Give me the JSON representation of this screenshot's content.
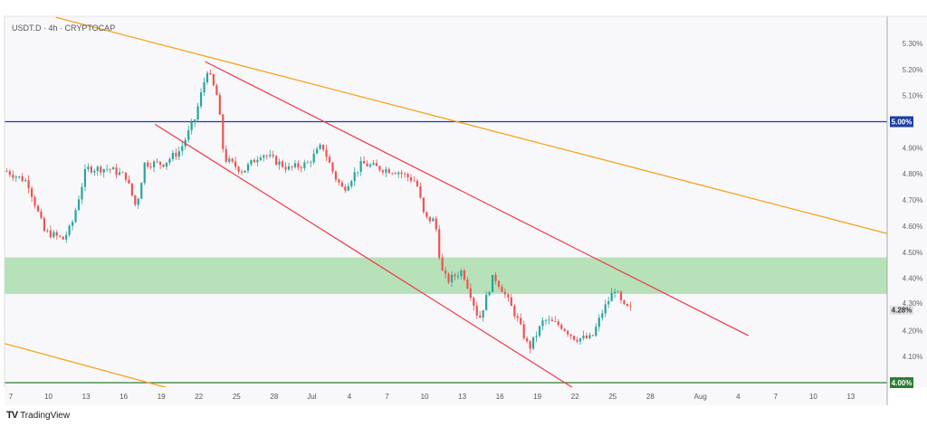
{
  "header": {
    "symbol_title": "USDT.D · 4h · CRYPTOCAP"
  },
  "footer": {
    "brand": "TradingView",
    "logo_mark": "TV"
  },
  "colors": {
    "up": "#26a69a",
    "down": "#ef5350",
    "trend_orange": "#f7a21b",
    "channel_red": "#f23645",
    "level_blue": "#1e3fa0",
    "level_green": "#2e7d32",
    "zone": "#b2dfb5"
  },
  "chart_data": {
    "type": "candlestick",
    "symbol": "USDT.D",
    "interval": "4h",
    "yaxis": {
      "unit": "%",
      "ticks": [
        "5.30%",
        "5.20%",
        "5.10%",
        "5.00%",
        "4.90%",
        "4.80%",
        "4.70%",
        "4.60%",
        "4.50%",
        "4.40%",
        "4.30%",
        "4.20%",
        "4.10%",
        "4.00%"
      ],
      "ylim": [
        3.99,
        5.4
      ]
    },
    "xaxis": {
      "ticks": [
        {
          "label": "7",
          "date": "Jun 7"
        },
        {
          "label": "10",
          "date": "Jun 10"
        },
        {
          "label": "13",
          "date": "Jun 13"
        },
        {
          "label": "16",
          "date": "Jun 16"
        },
        {
          "label": "19",
          "date": "Jun 19"
        },
        {
          "label": "22",
          "date": "Jun 22"
        },
        {
          "label": "25",
          "date": "Jun 25"
        },
        {
          "label": "28",
          "date": "Jun 28"
        },
        {
          "label": "Jul",
          "date": "Jul 1"
        },
        {
          "label": "4",
          "date": "Jul 4"
        },
        {
          "label": "7",
          "date": "Jul 7"
        },
        {
          "label": "10",
          "date": "Jul 10"
        },
        {
          "label": "13",
          "date": "Jul 13"
        },
        {
          "label": "16",
          "date": "Jul 16"
        },
        {
          "label": "19",
          "date": "Jul 19"
        },
        {
          "label": "22",
          "date": "Jul 22"
        },
        {
          "label": "25",
          "date": "Jul 25"
        },
        {
          "label": "28",
          "date": "Jul 28"
        },
        {
          "label": "Aug",
          "date": "Aug 1"
        },
        {
          "label": "4",
          "date": "Aug 4"
        },
        {
          "label": "7",
          "date": "Aug 7"
        },
        {
          "label": "10",
          "date": "Aug 10"
        },
        {
          "label": "13",
          "date": "Aug 13"
        }
      ]
    },
    "price_path": [
      [
        "Jun 6 16:00",
        4.81
      ],
      [
        "Jun 8 08:00",
        4.77
      ],
      [
        "Jun 9 16:00",
        4.58
      ],
      [
        "Jun 11 04:00",
        4.55
      ],
      [
        "Jun 11 20:00",
        4.6
      ],
      [
        "Jun 13 00:00",
        4.82
      ],
      [
        "Jun 14 20:00",
        4.82
      ],
      [
        "Jun 16 04:00",
        4.79
      ],
      [
        "Jun 17 00:00",
        4.67
      ],
      [
        "Jun 17 16:00",
        4.84
      ],
      [
        "Jun 19 04:00",
        4.84
      ],
      [
        "Jun 20 12:00",
        4.89
      ],
      [
        "Jun 21 16:00",
        5.01
      ],
      [
        "Jun 22 16:00",
        5.2
      ],
      [
        "Jun 23 12:00",
        5.09
      ],
      [
        "Jun 24 00:00",
        4.86
      ],
      [
        "Jun 25 12:00",
        4.81
      ],
      [
        "Jun 27 00:00",
        4.88
      ],
      [
        "Jun 29 04:00",
        4.82
      ],
      [
        "Jun 30 16:00",
        4.84
      ],
      [
        "Jul 1 20:00",
        4.91
      ],
      [
        "Jul 2 20:00",
        4.79
      ],
      [
        "Jul 3 12:00",
        4.74
      ],
      [
        "Jul 5 00:00",
        4.84
      ],
      [
        "Jul 6 12:00",
        4.82
      ],
      [
        "Jul 7 20:00",
        4.81
      ],
      [
        "Jul 9 08:00",
        4.77
      ],
      [
        "Jul 10 00:00",
        4.63
      ],
      [
        "Jul 10 20:00",
        4.62
      ],
      [
        "Jul 11 08:00",
        4.43
      ],
      [
        "Jul 11 20:00",
        4.39
      ],
      [
        "Jul 13 00:00",
        4.43
      ],
      [
        "Jul 13 16:00",
        4.34
      ],
      [
        "Jul 14 08:00",
        4.24
      ],
      [
        "Jul 15 12:00",
        4.41
      ],
      [
        "Jul 16 04:00",
        4.36
      ],
      [
        "Jul 17 08:00",
        4.25
      ],
      [
        "Jul 18 08:00",
        4.13
      ],
      [
        "Jul 19 12:00",
        4.24
      ],
      [
        "Jul 20 20:00",
        4.22
      ],
      [
        "Jul 22 00:00",
        4.17
      ],
      [
        "Jul 23 08:00",
        4.17
      ],
      [
        "Jul 24 04:00",
        4.27
      ],
      [
        "Jul 25 04:00",
        4.36
      ],
      [
        "Jul 25 20:00",
        4.29
      ],
      [
        "Jul 26 12:00",
        4.28
      ]
    ],
    "drawings": {
      "trendlines_orange": [
        [
          [
            "Jun 10 14:00",
            5.4
          ],
          [
            "Aug 16 00:00",
            4.57
          ]
        ],
        [
          [
            "Jun 6 12:00",
            4.15
          ],
          [
            "Jun 19 12:00",
            3.98
          ]
        ]
      ],
      "channel_red": [
        [
          [
            "Jun 22 12:00",
            5.23
          ],
          [
            "Aug 4 20:00",
            4.18
          ]
        ],
        [
          [
            "Jun 18 12:00",
            4.99
          ],
          [
            "Jul 21 20:00",
            3.98
          ]
        ]
      ],
      "horizontal_levels": [
        {
          "price": 5.0,
          "label": "5.00%",
          "color": "#1e3fa0"
        },
        {
          "price": 4.0,
          "label": "4.00%",
          "color": "#2e7d32"
        }
      ],
      "zone": {
        "from": 4.34,
        "to": 4.48
      }
    },
    "last_price_label": "4.28%",
    "last_price": 4.28,
    "grid": false
  }
}
